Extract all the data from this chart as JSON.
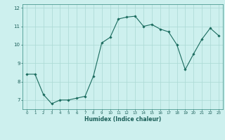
{
  "x": [
    0,
    1,
    2,
    3,
    4,
    5,
    6,
    7,
    8,
    9,
    10,
    11,
    12,
    13,
    14,
    15,
    16,
    17,
    18,
    19,
    20,
    21,
    22,
    23
  ],
  "y": [
    8.4,
    8.4,
    7.3,
    6.8,
    7.0,
    7.0,
    7.1,
    7.2,
    8.3,
    10.1,
    10.4,
    11.4,
    11.5,
    11.55,
    11.0,
    11.1,
    10.85,
    10.7,
    10.0,
    8.65,
    9.5,
    10.3,
    10.9,
    10.5
  ],
  "xlabel": "Humidex (Indice chaleur)",
  "line_color": "#1a6b5e",
  "marker_color": "#1a6b5e",
  "bg_color": "#cdf0ee",
  "grid_color": "#aad8d4",
  "axis_color": "#4a9990",
  "tick_color": "#1a5e58",
  "xlim": [
    -0.5,
    23.5
  ],
  "ylim": [
    6.5,
    12.2
  ],
  "yticks": [
    7,
    8,
    9,
    10,
    11,
    12
  ],
  "xticks": [
    0,
    1,
    2,
    3,
    4,
    5,
    6,
    7,
    8,
    9,
    10,
    11,
    12,
    13,
    14,
    15,
    16,
    17,
    18,
    19,
    20,
    21,
    22,
    23
  ]
}
